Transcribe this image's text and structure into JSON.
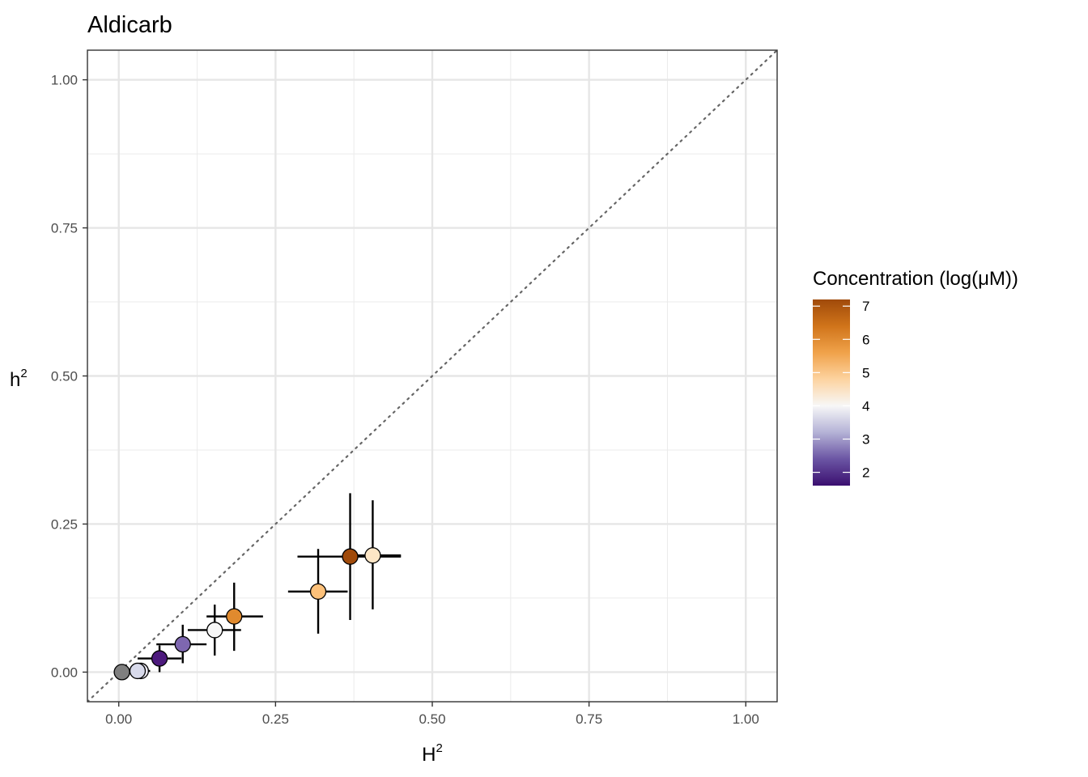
{
  "chart_data": {
    "type": "scatter",
    "title": "Aldicarb",
    "xlabel": {
      "base": "H",
      "sup": "2"
    },
    "ylabel": {
      "base": "h",
      "sup": "2"
    },
    "xlim": [
      -0.05,
      1.05
    ],
    "ylim": [
      -0.05,
      1.05
    ],
    "xticks": [
      0.0,
      0.25,
      0.5,
      0.75,
      1.0
    ],
    "yticks": [
      0.0,
      0.25,
      0.5,
      0.75,
      1.0
    ],
    "xtick_labels": [
      "0.00",
      "0.25",
      "0.50",
      "0.75",
      "1.00"
    ],
    "ytick_labels": [
      "0.00",
      "0.25",
      "0.50",
      "0.75",
      "1.00"
    ],
    "grid": true,
    "reference_line": "y = x (dotted)",
    "points": [
      {
        "x": 0.005,
        "y": 0.0,
        "x_err": [
          0.0,
          0.01
        ],
        "y_err": [
          0.0,
          0.0
        ],
        "concentration": null,
        "color": "#7f7f7f"
      },
      {
        "x": 0.035,
        "y": 0.002,
        "x_err": [
          0.02,
          0.05
        ],
        "y_err": [
          0.0,
          0.01
        ],
        "concentration": 3.9,
        "color": "#eceaf4"
      },
      {
        "x": 0.03,
        "y": 0.002,
        "x_err": [
          0.02,
          0.045
        ],
        "y_err": [
          0.0,
          0.005
        ],
        "concentration": 3.6,
        "color": "#d8daeb"
      },
      {
        "x": 0.065,
        "y": 0.023,
        "x_err": [
          0.03,
          0.1
        ],
        "y_err": [
          0.0,
          0.045
        ],
        "concentration": 1.7,
        "color": "#4d1a7d"
      },
      {
        "x": 0.102,
        "y": 0.047,
        "x_err": [
          0.06,
          0.14
        ],
        "y_err": [
          0.015,
          0.08
        ],
        "concentration": 2.8,
        "color": "#7e67b0"
      },
      {
        "x": 0.153,
        "y": 0.071,
        "x_err": [
          0.11,
          0.195
        ],
        "y_err": [
          0.028,
          0.114
        ],
        "concentration": 4.2,
        "color": "#f7f7f7"
      },
      {
        "x": 0.184,
        "y": 0.094,
        "x_err": [
          0.14,
          0.23
        ],
        "y_err": [
          0.036,
          0.151
        ],
        "concentration": 6.3,
        "color": "#e08a2e"
      },
      {
        "x": 0.318,
        "y": 0.136,
        "x_err": [
          0.27,
          0.365
        ],
        "y_err": [
          0.065,
          0.208
        ],
        "concentration": 5.6,
        "color": "#fdc17a"
      },
      {
        "x": 0.369,
        "y": 0.195,
        "x_err": [
          0.285,
          0.45
        ],
        "y_err": [
          0.088,
          0.302
        ],
        "concentration": 7.0,
        "color": "#a04a0a"
      },
      {
        "x": 0.405,
        "y": 0.197,
        "x_err": [
          0.36,
          0.45
        ],
        "y_err": [
          0.106,
          0.29
        ],
        "concentration": 5.1,
        "color": "#fde6c6"
      }
    ],
    "legend": {
      "title": "Concentration (log(μM))",
      "placement": "right",
      "type": "colorbar",
      "range": [
        1.6,
        7.2
      ],
      "ticks": [
        2,
        3,
        4,
        5,
        6,
        7
      ],
      "tick_labels": [
        "2",
        "3",
        "4",
        "5",
        "6",
        "7"
      ],
      "colors": [
        "#3b0f70",
        "#6b55a4",
        "#b4b2d6",
        "#f7f7f7",
        "#fdd3a0",
        "#f0a24a",
        "#d0741a",
        "#a04a0a"
      ]
    }
  }
}
